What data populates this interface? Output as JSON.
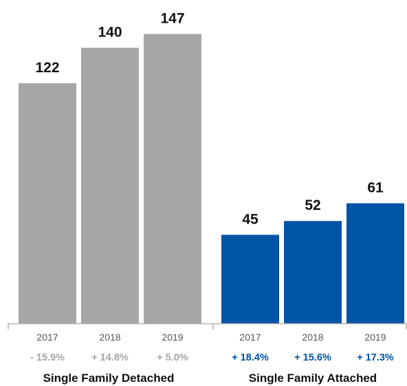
{
  "chart_data": {
    "type": "bar",
    "y_min": 0,
    "groups": [
      {
        "name": "Single Family Detached",
        "color": "#a6a6a6",
        "change_color": "#a6a6a6",
        "bars": [
          {
            "year": "2017",
            "value": 122,
            "change": "- 15.9%"
          },
          {
            "year": "2018",
            "value": 140,
            "change": "+ 14.8%"
          },
          {
            "year": "2019",
            "value": 147,
            "change": "+ 5.0%"
          }
        ]
      },
      {
        "name": "Single Family Attached",
        "color": "#0054a6",
        "change_color": "#0054a6",
        "bars": [
          {
            "year": "2017",
            "value": 45,
            "change": "+ 18.4%"
          },
          {
            "year": "2018",
            "value": 52,
            "change": "+ 15.6%"
          },
          {
            "year": "2019",
            "value": 61,
            "change": "+ 17.3%"
          }
        ]
      }
    ],
    "axis_color": "#b3b3b3"
  }
}
